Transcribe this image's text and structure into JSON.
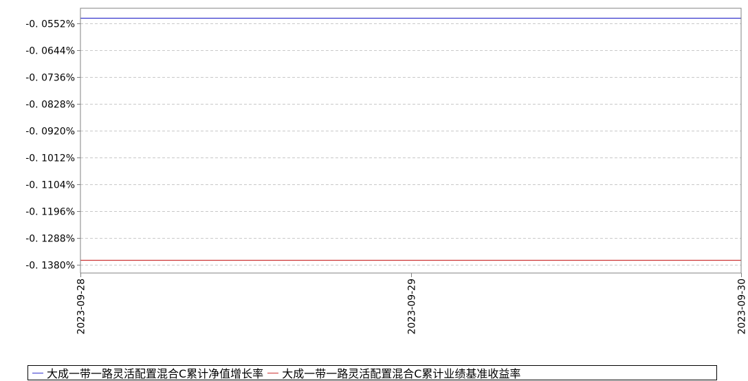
{
  "chart_data": {
    "type": "line",
    "title": "",
    "xlabel": "",
    "ylabel": "",
    "x": [
      "2023-09-28",
      "2023-09-29",
      "2023-09-30"
    ],
    "ylim": [
      -0.1408,
      -0.05
    ],
    "y_ticks": [
      -0.0552,
      -0.0644,
      -0.0736,
      -0.0828,
      -0.092,
      -0.1012,
      -0.1104,
      -0.1196,
      -0.1288,
      -0.138
    ],
    "y_tick_labels": [
      "-0. 0552%",
      "-0. 0644%",
      "-0. 0736%",
      "-0. 0828%",
      "-0. 0920%",
      "-0. 1012%",
      "-0. 1104%",
      "-0. 1196%",
      "-0. 1288%",
      "-0. 1380%"
    ],
    "grid": true,
    "legend_position": "bottom",
    "series": [
      {
        "name": "大成一带一路灵活配置混合C累计净值增长率",
        "color": "#3333cc",
        "values": [
          -0.0533,
          -0.0533,
          -0.0533
        ]
      },
      {
        "name": "大成一带一路灵活配置混合C累计业绩基准收益率",
        "color": "#cc3333",
        "values": [
          -0.1363,
          -0.1363,
          -0.1363
        ]
      }
    ]
  }
}
